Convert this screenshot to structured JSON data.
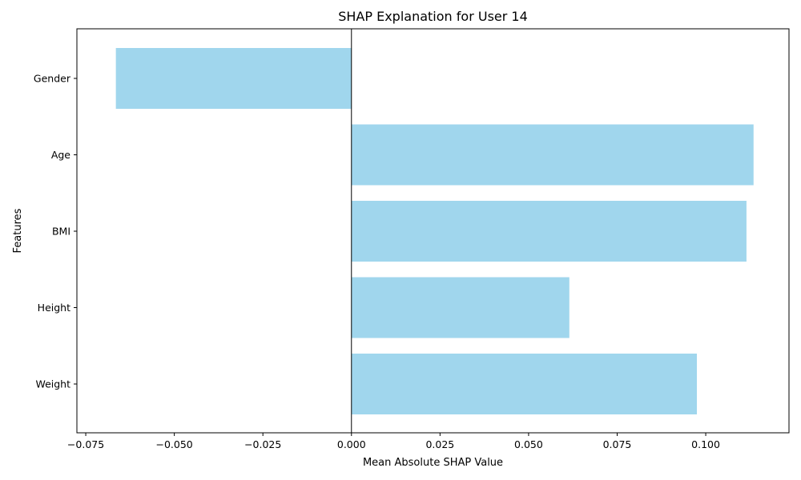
{
  "chart_data": {
    "type": "bar",
    "orientation": "horizontal",
    "title": "SHAP Explanation for User 14",
    "xlabel": "Mean Absolute SHAP Value",
    "ylabel": "Features",
    "categories": [
      "Gender",
      "Age",
      "BMI",
      "Height",
      "Weight"
    ],
    "values": [
      -0.0665,
      0.1135,
      0.1115,
      0.0615,
      0.0975
    ],
    "xlim": [
      -0.0775,
      0.1235
    ],
    "xticks": [
      -0.075,
      -0.05,
      -0.025,
      0.0,
      0.025,
      0.05,
      0.075,
      0.1
    ],
    "xtick_labels": [
      "−0.075",
      "−0.050",
      "−0.025",
      "0.000",
      "0.025",
      "0.050",
      "0.075",
      "0.100"
    ],
    "bar_color": "#a0d6ed",
    "zero_line_color": "#000000",
    "grid": false,
    "legend": "none"
  }
}
